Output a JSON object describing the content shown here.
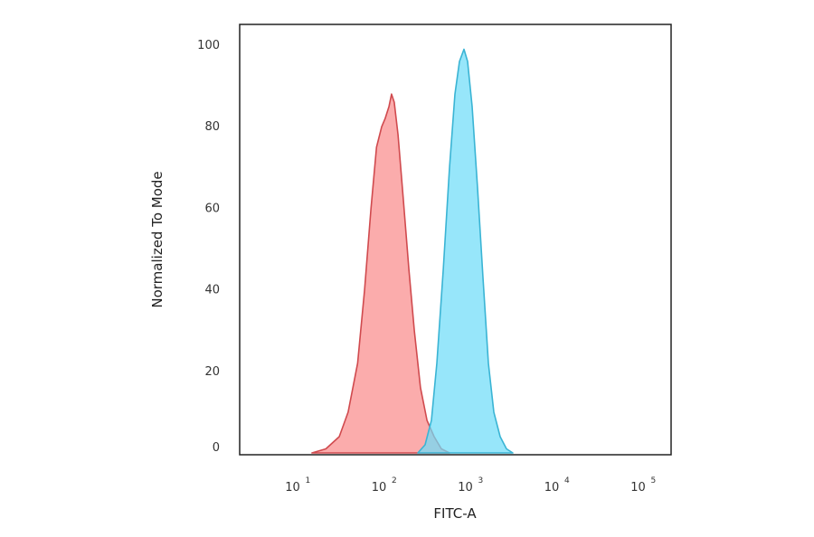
{
  "chart_data": {
    "type": "area",
    "title": "",
    "xlabel": "FITC-A",
    "ylabel": "Normalized To Mode",
    "x_scale": "log",
    "xlim": [
      2,
      210000
    ],
    "ylim": [
      0,
      105
    ],
    "grid": false,
    "xticks": [
      {
        "value": 10,
        "base": "10",
        "exp": "1"
      },
      {
        "value": 100,
        "base": "10",
        "exp": "2"
      },
      {
        "value": 1000,
        "base": "10",
        "exp": "3"
      },
      {
        "value": 10000,
        "base": "10",
        "exp": "4"
      },
      {
        "value": 100000,
        "base": "10",
        "exp": "5"
      }
    ],
    "yticks": [
      {
        "value": 0,
        "label": "0"
      },
      {
        "value": 20,
        "label": "20"
      },
      {
        "value": 40,
        "label": "40"
      },
      {
        "value": 60,
        "label": "60"
      },
      {
        "value": 80,
        "label": "80"
      },
      {
        "value": 100,
        "label": "100"
      }
    ],
    "series": [
      {
        "color": "#d04a4e",
        "fill": "#fa8c8c",
        "x": [
          14.5,
          21,
          30,
          38,
          49,
          59,
          70,
          81,
          93,
          102,
          113,
          121,
          130,
          144,
          166,
          192,
          222,
          262,
          311,
          377,
          457,
          568
        ],
        "y": [
          0,
          1,
          4,
          10,
          22,
          40,
          60,
          75,
          80,
          82,
          85,
          88,
          86,
          78,
          62,
          45,
          30,
          16,
          8,
          4,
          1,
          0
        ]
      },
      {
        "color": "#3ab4d4",
        "fill": "#6fdcf8",
        "x": [
          244,
          296,
          350,
          405,
          480,
          568,
          656,
          740,
          834,
          919,
          1037,
          1199,
          1384,
          1600,
          1849,
          2188,
          2594,
          3070
        ],
        "y": [
          0,
          2,
          8,
          22,
          45,
          70,
          88,
          96,
          99,
          96,
          85,
          65,
          43,
          22,
          10,
          4,
          1,
          0
        ]
      }
    ]
  }
}
